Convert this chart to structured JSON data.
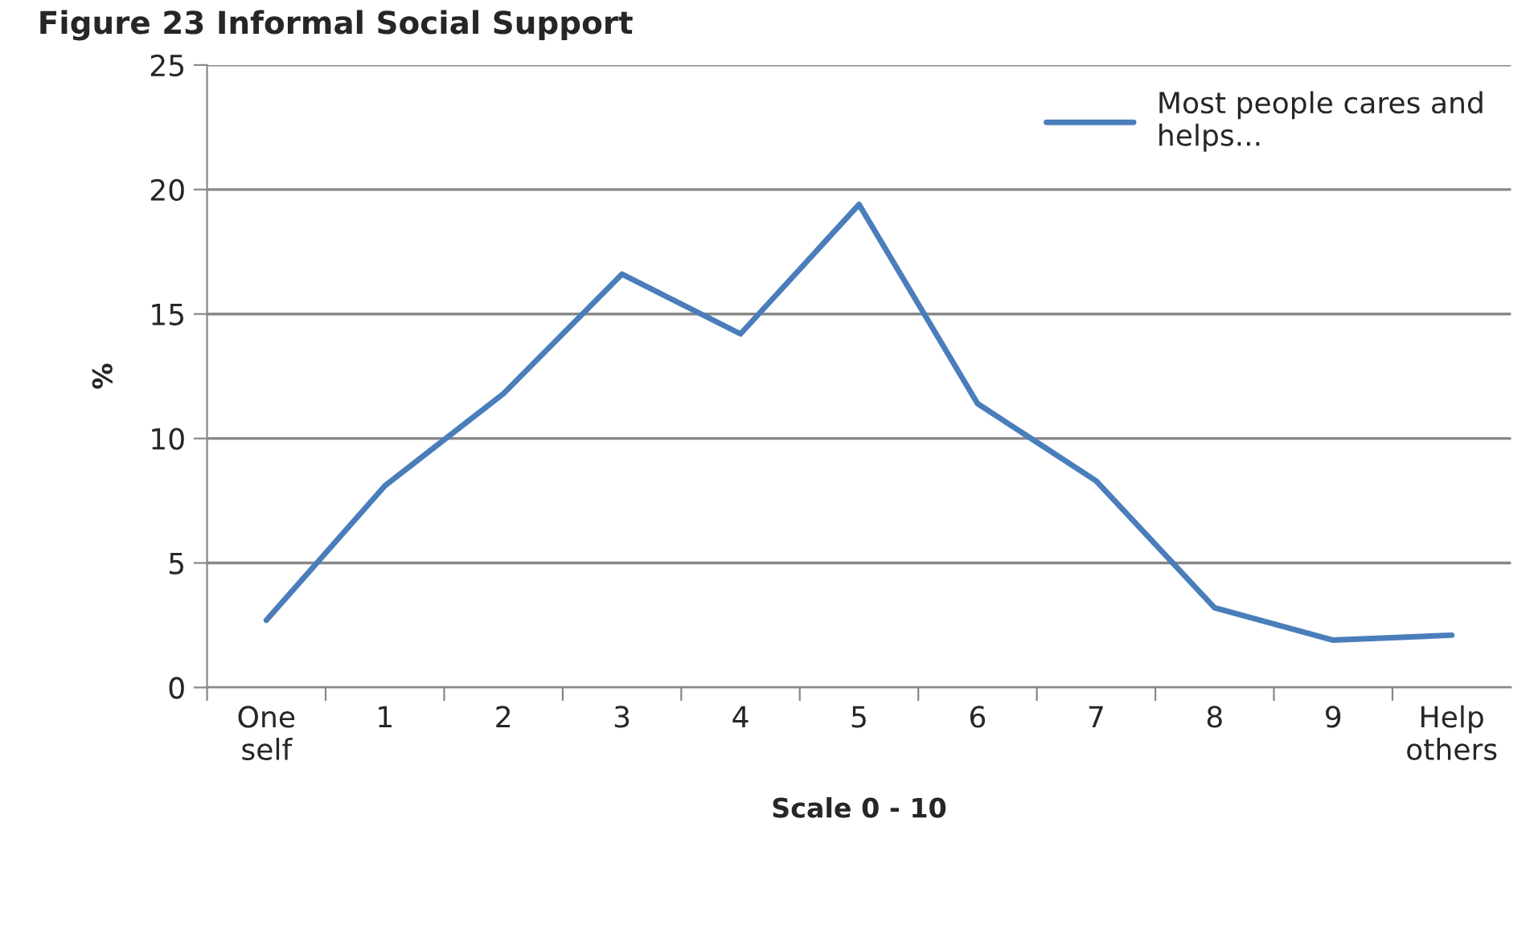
{
  "chart_data": {
    "type": "line",
    "title": "Figure 23 Informal Social Support",
    "xlabel": "Scale 0 - 10",
    "ylabel": "%",
    "categories": [
      "One\nself",
      "1",
      "2",
      "3",
      "4",
      "5",
      "6",
      "7",
      "8",
      "9",
      "Help\nothers"
    ],
    "series": [
      {
        "name": "Most people cares and\nhelps...",
        "color": "#4a7ebb",
        "values": [
          2.7,
          8.1,
          11.8,
          16.6,
          14.2,
          19.4,
          11.4,
          8.3,
          3.2,
          1.9,
          2.1
        ]
      }
    ],
    "ylim": [
      0,
      25
    ],
    "yticks": [
      0,
      5,
      10,
      15,
      20,
      25
    ],
    "grid": "y",
    "legend": "top right",
    "marker": "none",
    "line_style": "solid"
  }
}
